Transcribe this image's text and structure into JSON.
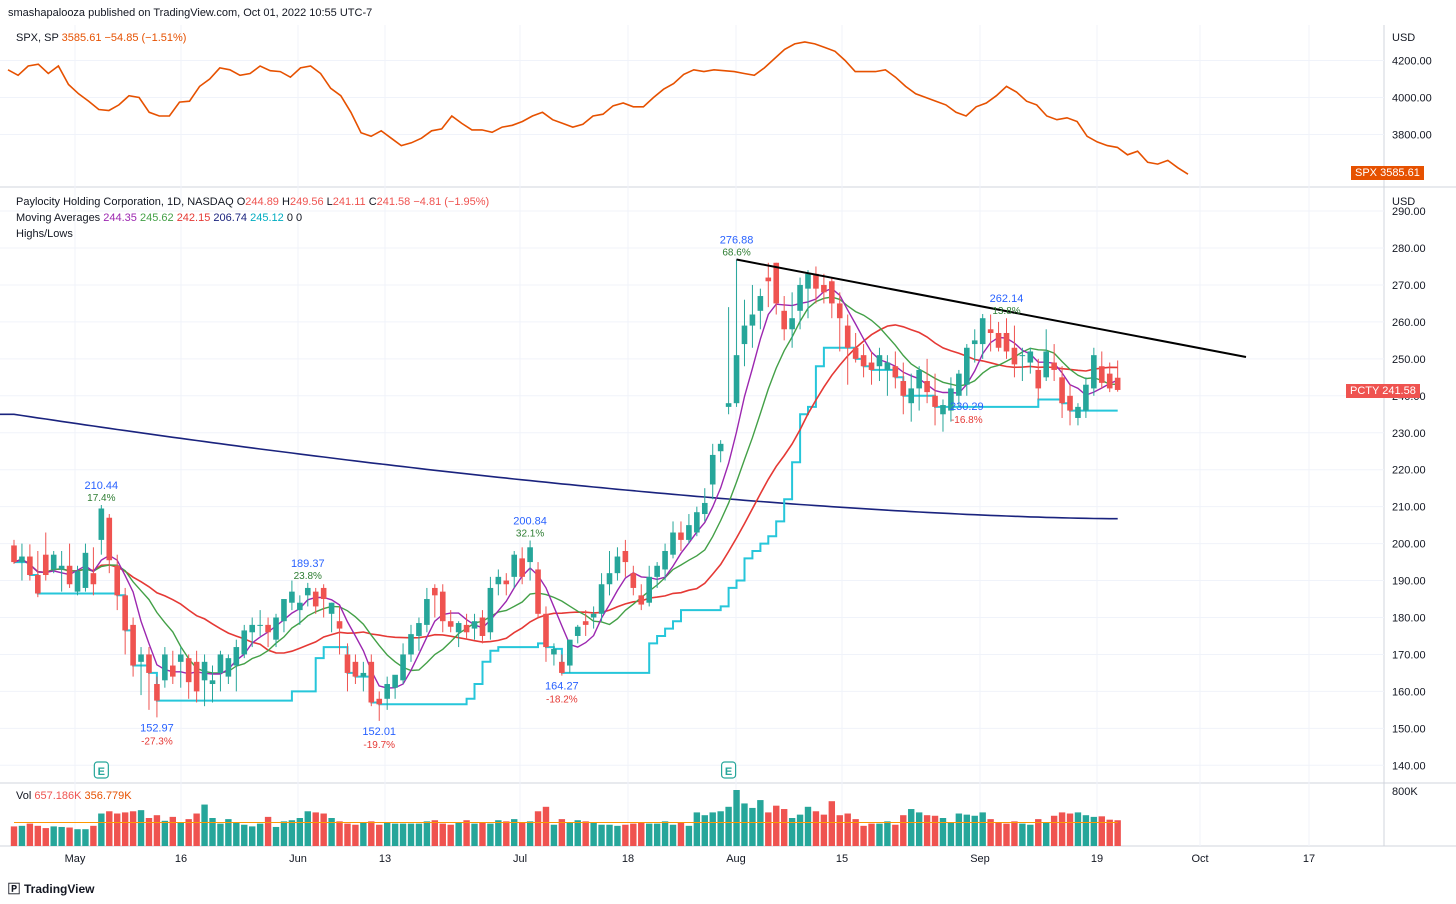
{
  "publish_line": "smashapalooza published on TradingView.com, Oct 01, 2022 10:55 UTC-7",
  "spx": {
    "label": "SPX, SP",
    "price": "3585.61",
    "change": "−54.85 (−1.51%)",
    "tag_symbol": "SPX",
    "tag_price": "3585.61",
    "color": "#e65100"
  },
  "pcty": {
    "title": "Paylocity Holding Corporation, 1D, NASDAQ",
    "O_label": "O",
    "O": "244.89",
    "H_label": "H",
    "H": "249.56",
    "L_label": "L",
    "L": "241.11",
    "C_label": "C",
    "C": "241.58",
    "change": "−4.81 (−1.95%)",
    "tag_symbol": "PCTY",
    "tag_price": "241.58",
    "tag_color": "#ef5350"
  },
  "moving_averages": {
    "label": "Moving Averages",
    "values": [
      "244.35",
      "245.62",
      "242.15",
      "206.74",
      "245.12",
      "0",
      "0"
    ],
    "colors": [
      "#9c27b0",
      "#43a047",
      "#e53935",
      "#1a237e",
      "#26c6da",
      "#131722",
      "#131722"
    ]
  },
  "highs_lows_label": "Highs/Lows",
  "volume": {
    "label": "Vol",
    "value1": "657.186K",
    "value2": "356.779K",
    "axis_label": "800K"
  },
  "brand": "TradingView",
  "chart_data": {
    "type": "candlestick",
    "x_ticks": [
      "May",
      "16",
      "Jun",
      "13",
      "Jul",
      "18",
      "Aug",
      "15",
      "Sep",
      "19",
      "Oct",
      "17"
    ],
    "spx_axis": {
      "unit": "USD",
      "ticks": [
        "4200.00",
        "4000.00",
        "3800.00"
      ]
    },
    "price_axis": {
      "unit": "USD",
      "ticks": [
        "290.00",
        "280.00",
        "270.00",
        "260.00",
        "250.00",
        "240.00",
        "230.00",
        "220.00",
        "210.00",
        "200.00",
        "190.00",
        "180.00",
        "170.00",
        "160.00",
        "150.00",
        "140.00"
      ]
    },
    "spx_series": [
      4150,
      4120,
      4170,
      4180,
      4130,
      4170,
      4070,
      4020,
      3980,
      3935,
      3930,
      3960,
      4010,
      4000,
      3920,
      3900,
      3900,
      3975,
      3980,
      4060,
      4100,
      4160,
      4150,
      4120,
      4130,
      4170,
      4145,
      4140,
      4110,
      4160,
      4170,
      4130,
      4050,
      4010,
      3920,
      3810,
      3790,
      3820,
      3780,
      3740,
      3755,
      3780,
      3820,
      3830,
      3900,
      3860,
      3825,
      3825,
      3812,
      3840,
      3850,
      3870,
      3900,
      3920,
      3880,
      3860,
      3840,
      3855,
      3900,
      3910,
      3955,
      3970,
      3950,
      3950,
      4000,
      4045,
      4075,
      4125,
      4150,
      4140,
      4150,
      4145,
      4140,
      4130,
      4120,
      4160,
      4210,
      4260,
      4290,
      4300,
      4290,
      4270,
      4250,
      4200,
      4140,
      4140,
      4140,
      4150,
      4110,
      4060,
      4020,
      4000,
      3980,
      3960,
      3920,
      3900,
      3950,
      3970,
      4010,
      4060,
      4030,
      3980,
      3960,
      3900,
      3880,
      3890,
      3870,
      3790,
      3760,
      3740,
      3730,
      3690,
      3710,
      3650,
      3640,
      3660,
      3620,
      3585.61
    ],
    "candles": [
      [
        199.5,
        201,
        194.5,
        195
      ],
      [
        195,
        200,
        190,
        196.5
      ],
      [
        196.5,
        199.8,
        190,
        191.5
      ],
      [
        191.5,
        198,
        185.5,
        186.5
      ],
      [
        197,
        203,
        190,
        191.5
      ],
      [
        193,
        198,
        192,
        197
      ],
      [
        193,
        198,
        187,
        194
      ],
      [
        194,
        200,
        188,
        189
      ],
      [
        187,
        194,
        186,
        192.5
      ],
      [
        188,
        200,
        187,
        197.5
      ],
      [
        192,
        199,
        186,
        189
      ],
      [
        201,
        210.44,
        197,
        209.5
      ],
      [
        207,
        208,
        192,
        195.5
      ],
      [
        194,
        197,
        182,
        186
      ],
      [
        186,
        188,
        170,
        176.5
      ],
      [
        178,
        180,
        164,
        167
      ],
      [
        168,
        172,
        159,
        170
      ],
      [
        170,
        172,
        155,
        165
      ],
      [
        162,
        164,
        152.97,
        157.5
      ],
      [
        163,
        172,
        161,
        170
      ],
      [
        167,
        171,
        162,
        164
      ],
      [
        168,
        172,
        161,
        170
      ],
      [
        169,
        170,
        158,
        162.5
      ],
      [
        168,
        171,
        157,
        160
      ],
      [
        163,
        170,
        156,
        168
      ],
      [
        162,
        167,
        157,
        163
      ],
      [
        165,
        171,
        160,
        170
      ],
      [
        164,
        170,
        162,
        169
      ],
      [
        167,
        174,
        160,
        172
      ],
      [
        170,
        178,
        169,
        176.5
      ],
      [
        176,
        180,
        172,
        178
      ],
      [
        178,
        182,
        175,
        178
      ],
      [
        178,
        180,
        172,
        176
      ],
      [
        174,
        181,
        172,
        180
      ],
      [
        179,
        184,
        176,
        185
      ],
      [
        184,
        190,
        182,
        187
      ],
      [
        182,
        186,
        178,
        184
      ],
      [
        186,
        189.37,
        183,
        188
      ],
      [
        187,
        188,
        181,
        183
      ],
      [
        188,
        189,
        180,
        185
      ],
      [
        181,
        184,
        176,
        184
      ],
      [
        179,
        183,
        170,
        177
      ],
      [
        170,
        173,
        160,
        165
      ],
      [
        168,
        170,
        162,
        164
      ],
      [
        164,
        168,
        160,
        165
      ],
      [
        168,
        170,
        156,
        157
      ],
      [
        158,
        160,
        152.01,
        156.5
      ],
      [
        158,
        164,
        155,
        162
      ],
      [
        161,
        164,
        158,
        164.5
      ],
      [
        163,
        173,
        162,
        170
      ],
      [
        170,
        178,
        168,
        175.5
      ],
      [
        175,
        180,
        171,
        178.5
      ],
      [
        178,
        188,
        176,
        185
      ],
      [
        188,
        189,
        180,
        186
      ],
      [
        187,
        189,
        176,
        179
      ],
      [
        179,
        182,
        176,
        177.5
      ],
      [
        176,
        179,
        172,
        178.5
      ],
      [
        178,
        181,
        174,
        176
      ],
      [
        177,
        181,
        174,
        179
      ],
      [
        180,
        182,
        173,
        175
      ],
      [
        176,
        191,
        174,
        188
      ],
      [
        189,
        193,
        186,
        191
      ],
      [
        190,
        192,
        186,
        189
      ],
      [
        191,
        198,
        188,
        197
      ],
      [
        196,
        199,
        189,
        191
      ],
      [
        195,
        200.84,
        190,
        199
      ],
      [
        193,
        195,
        180,
        181
      ],
      [
        181,
        183,
        168,
        172
      ],
      [
        170,
        173,
        167,
        171.5
      ],
      [
        168,
        170,
        164.27,
        165
      ],
      [
        167,
        174,
        165,
        174
      ],
      [
        175,
        178,
        173,
        177.5
      ],
      [
        179,
        182,
        175,
        178
      ],
      [
        180,
        183,
        177,
        181
      ],
      [
        181,
        192,
        179,
        189
      ],
      [
        189,
        198,
        186,
        192
      ],
      [
        192,
        199,
        190,
        196.5
      ],
      [
        198,
        201,
        191,
        195
      ],
      [
        192,
        194,
        186,
        188
      ],
      [
        186,
        189,
        182,
        183.5
      ],
      [
        184,
        194,
        183,
        191
      ],
      [
        191,
        195,
        188,
        194
      ],
      [
        193,
        200,
        190,
        198
      ],
      [
        197,
        206,
        196,
        203
      ],
      [
        203,
        206,
        198,
        201
      ],
      [
        201,
        208,
        200,
        205
      ],
      [
        203,
        210,
        202,
        208.5
      ],
      [
        208,
        215,
        206,
        211
      ],
      [
        216,
        227,
        212,
        224
      ],
      [
        225,
        228,
        222,
        227
      ],
      [
        237,
        264,
        235,
        238
      ],
      [
        238,
        276.88,
        237,
        251
      ],
      [
        254,
        266,
        248,
        259
      ],
      [
        259,
        270,
        253,
        262
      ],
      [
        263,
        269,
        258,
        267
      ],
      [
        272,
        276,
        264,
        271
      ],
      [
        276,
        276,
        262,
        265
      ],
      [
        263,
        267,
        255,
        258
      ],
      [
        258,
        268,
        253,
        261
      ],
      [
        263,
        272,
        258,
        270
      ],
      [
        269,
        274,
        261,
        273
      ],
      [
        273,
        275,
        265,
        269
      ],
      [
        270,
        273,
        265,
        268
      ],
      [
        271,
        272,
        261,
        265
      ],
      [
        265,
        268,
        252,
        261
      ],
      [
        259,
        262,
        243,
        253
      ],
      [
        253,
        257,
        249,
        250
      ],
      [
        251,
        254,
        245,
        248
      ],
      [
        249,
        252,
        243,
        247
      ],
      [
        248,
        253,
        244,
        251
      ],
      [
        247,
        251,
        240,
        249
      ],
      [
        248,
        252,
        242,
        245
      ],
      [
        244,
        249,
        235,
        240
      ],
      [
        238,
        246,
        233,
        242
      ],
      [
        242,
        248,
        236,
        247
      ],
      [
        244,
        250,
        238,
        241
      ],
      [
        240,
        246,
        232,
        237
      ],
      [
        235,
        239,
        230.29,
        237.5
      ],
      [
        236,
        245,
        233,
        242
      ],
      [
        240,
        247,
        237,
        246
      ],
      [
        243,
        254,
        240,
        253
      ],
      [
        254,
        258,
        249,
        255
      ],
      [
        254,
        262.14,
        250,
        261
      ],
      [
        258,
        262,
        252,
        257
      ],
      [
        257,
        260,
        252,
        253
      ],
      [
        257,
        261,
        250,
        252
      ],
      [
        253,
        259,
        245,
        248.5
      ],
      [
        251,
        253,
        244,
        251
      ],
      [
        249,
        253,
        246,
        252
      ],
      [
        247,
        250,
        239,
        242
      ],
      [
        245,
        258,
        244,
        252
      ],
      [
        249,
        254,
        244,
        247
      ],
      [
        245,
        248,
        234,
        238
      ],
      [
        240,
        243,
        232,
        236
      ],
      [
        234,
        238,
        232,
        237
      ],
      [
        236,
        245,
        234,
        243
      ],
      [
        242,
        253,
        240,
        251
      ],
      [
        248,
        252,
        242,
        243.5
      ],
      [
        246,
        249,
        241,
        242
      ],
      [
        244.89,
        249.56,
        241.11,
        241.58
      ]
    ],
    "volumes": [
      0.35,
      0.36,
      0.4,
      0.36,
      0.32,
      0.35,
      0.34,
      0.33,
      0.3,
      0.3,
      0.36,
      0.58,
      0.62,
      0.58,
      0.6,
      0.62,
      0.64,
      0.5,
      0.55,
      0.45,
      0.52,
      0.42,
      0.48,
      0.58,
      0.74,
      0.5,
      0.4,
      0.48,
      0.42,
      0.38,
      0.35,
      0.4,
      0.52,
      0.34,
      0.44,
      0.46,
      0.5,
      0.62,
      0.6,
      0.58,
      0.5,
      0.44,
      0.4,
      0.38,
      0.42,
      0.44,
      0.38,
      0.42,
      0.4,
      0.4,
      0.4,
      0.4,
      0.44,
      0.46,
      0.4,
      0.38,
      0.42,
      0.46,
      0.4,
      0.42,
      0.4,
      0.46,
      0.44,
      0.48,
      0.42,
      0.44,
      0.62,
      0.7,
      0.38,
      0.48,
      0.42,
      0.46,
      0.44,
      0.42,
      0.38,
      0.38,
      0.36,
      0.38,
      0.4,
      0.42,
      0.4,
      0.4,
      0.44,
      0.38,
      0.42,
      0.36,
      0.6,
      0.55,
      0.6,
      0.62,
      0.7,
      1.0,
      0.76,
      0.68,
      0.82,
      0.6,
      0.72,
      0.66,
      0.5,
      0.56,
      0.7,
      0.62,
      0.56,
      0.8,
      0.55,
      0.58,
      0.48,
      0.36,
      0.4,
      0.4,
      0.44,
      0.38,
      0.55,
      0.66,
      0.6,
      0.55,
      0.54,
      0.5,
      0.42,
      0.58,
      0.56,
      0.54,
      0.6,
      0.48,
      0.42,
      0.4,
      0.44,
      0.4,
      0.38,
      0.48,
      0.42,
      0.54,
      0.6,
      0.58,
      0.6,
      0.55,
      0.52,
      0.53,
      0.47,
      0.46,
      0.57,
      0.83
    ],
    "annotations": [
      {
        "kind": "high",
        "price": "210.44",
        "pct": "17.4%",
        "index": 11
      },
      {
        "kind": "low",
        "price": "152.97",
        "pct": "-27.3%",
        "index": 18
      },
      {
        "kind": "high",
        "price": "189.37",
        "pct": "23.8%",
        "index": 37
      },
      {
        "kind": "low",
        "price": "152.01",
        "pct": "-19.7%",
        "index": 46
      },
      {
        "kind": "high",
        "price": "200.84",
        "pct": "32.1%",
        "index": 65
      },
      {
        "kind": "low",
        "price": "164.27",
        "pct": "-18.2%",
        "index": 69
      },
      {
        "kind": "high",
        "price": "276.88",
        "pct": "68.6%",
        "index": 91
      },
      {
        "kind": "low",
        "price": "230.29",
        "pct": "-16.8%",
        "index": 120
      },
      {
        "kind": "high",
        "price": "262.14",
        "pct": "13.8%",
        "index": 125
      }
    ],
    "earnings_markers": [
      {
        "index": 11,
        "label": "E"
      },
      {
        "index": 90,
        "label": "E"
      }
    ],
    "trendline": {
      "from": [
        91,
        276.88
      ],
      "to": [
        144,
        250.5
      ],
      "color": "#000000"
    },
    "moving_average_200": {
      "from": 235,
      "to": 206.74
    }
  }
}
